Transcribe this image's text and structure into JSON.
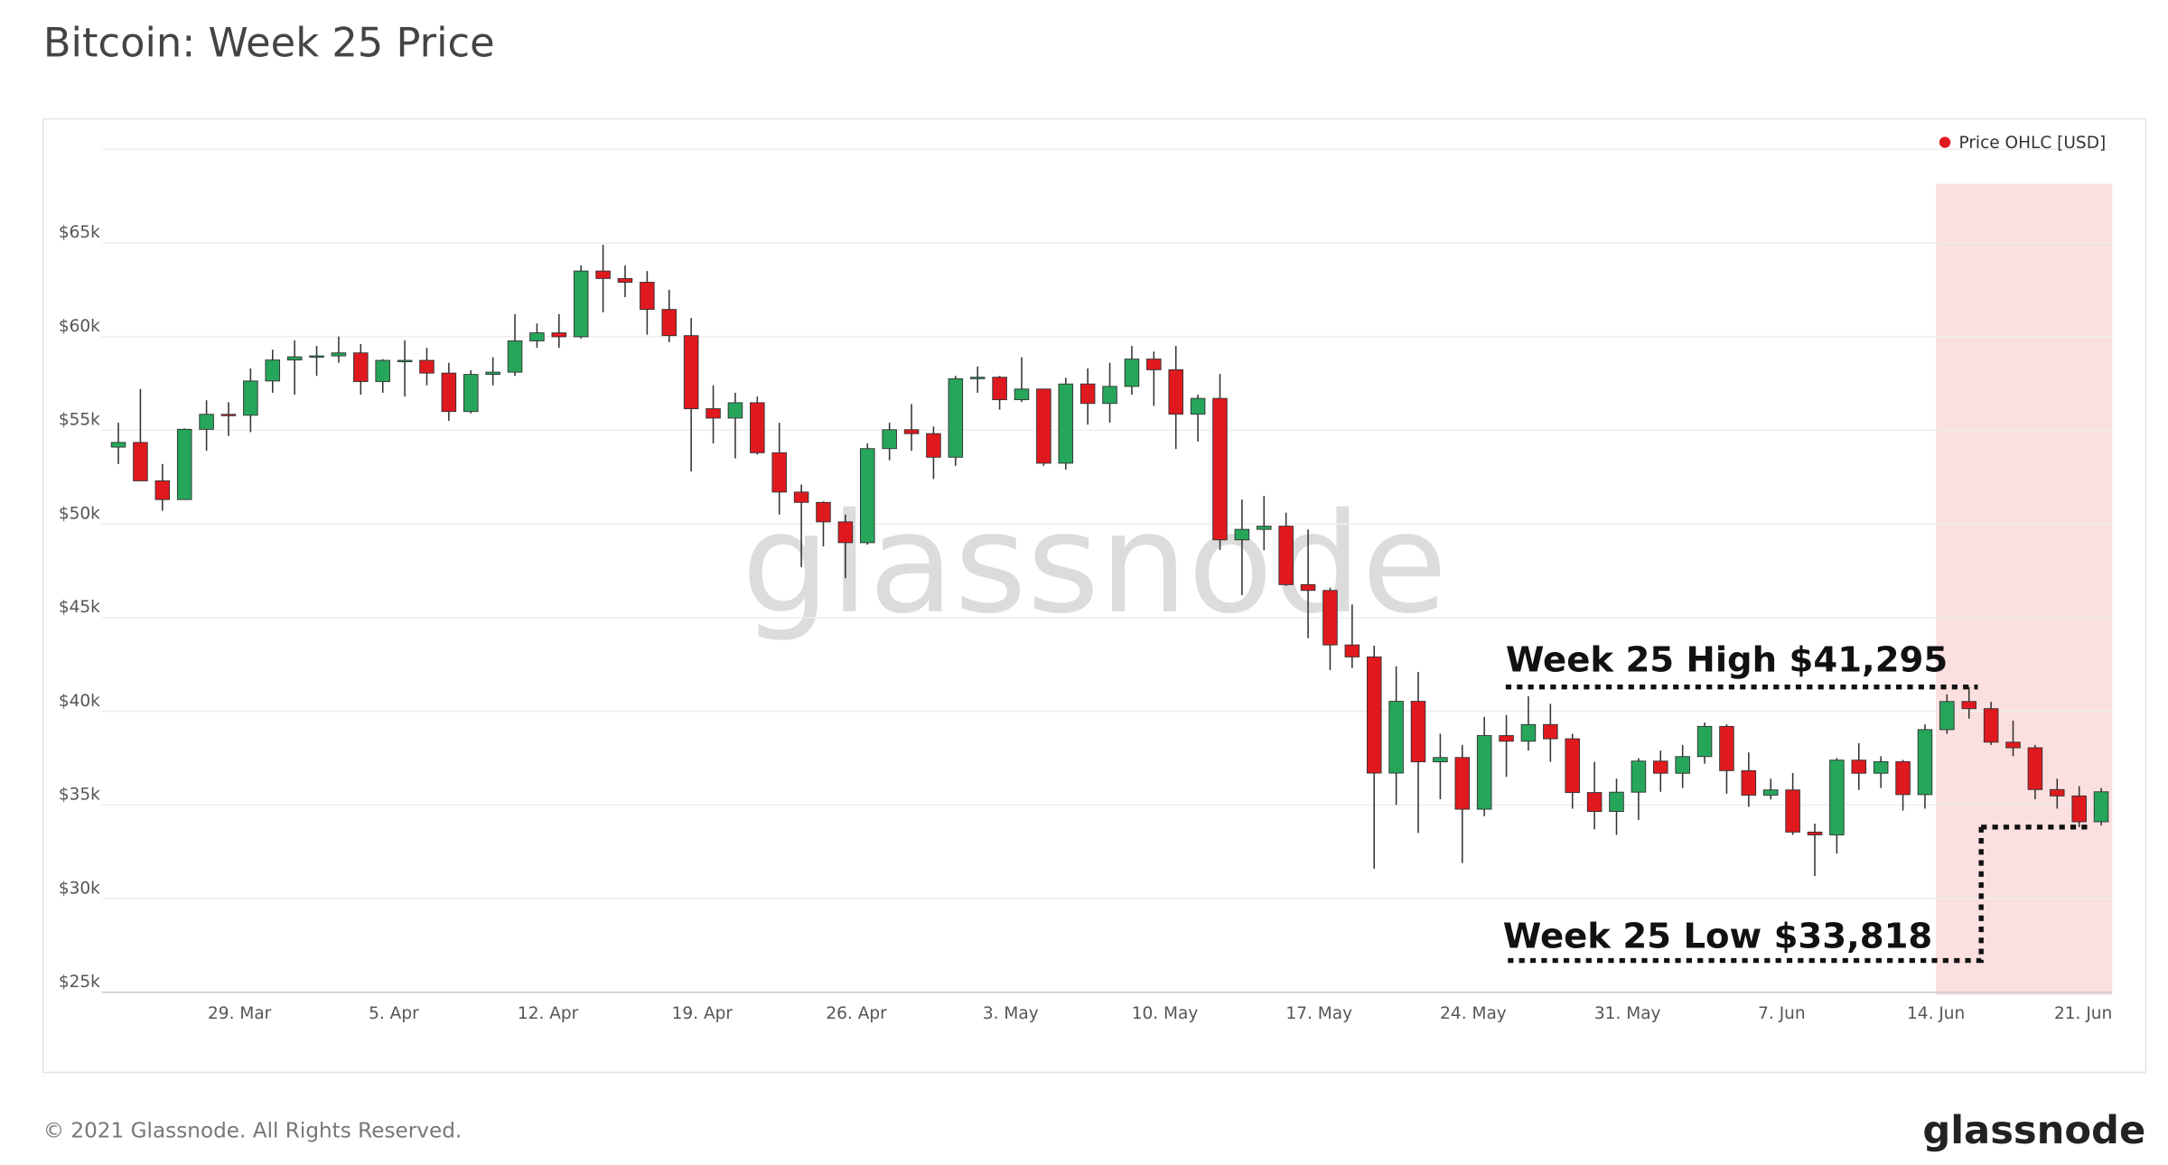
{
  "chart_data": {
    "type": "candlestick",
    "title": "Bitcoin: Week 25 Price",
    "categories": [
      null,
      null,
      null,
      null,
      null,
      null,
      "29. Mar",
      null,
      null,
      null,
      null,
      null,
      null,
      "5. Apr",
      null,
      null,
      null,
      null,
      null,
      null,
      "12. Apr",
      null,
      null,
      null,
      null,
      null,
      null,
      "19. Apr",
      null,
      null,
      null,
      null,
      null,
      null,
      "26. Apr",
      null,
      null,
      null,
      null,
      null,
      null,
      "3. May",
      null,
      null,
      null,
      null,
      null,
      null,
      "10. May",
      null,
      null,
      null,
      null,
      null,
      null,
      "17. May",
      null,
      null,
      null,
      null,
      null,
      null,
      "24. May",
      null,
      null,
      null,
      null,
      null,
      null,
      "31. May",
      null,
      null,
      null,
      null,
      null,
      null,
      "7. Jun",
      null,
      null,
      null,
      null,
      null,
      null,
      "14. Jun",
      null,
      null,
      null,
      null,
      null,
      null,
      "21. Jun"
    ],
    "series": [
      {
        "name": "Price OHLC [USD]",
        "color": "#e0191f",
        "open": [
          54100,
          54350,
          52300,
          51300,
          55050,
          55850,
          55800,
          57630,
          58750,
          58920,
          58970,
          59130,
          57600,
          58730,
          58730,
          58050,
          56000,
          57980,
          58100,
          59770,
          60200,
          59990,
          63500,
          63100,
          62900,
          61450,
          60050,
          56150,
          55650,
          56470,
          53800,
          51700,
          51150,
          50110,
          49000,
          54020,
          55030,
          54820,
          53560,
          57750,
          57830,
          56630,
          57200,
          53240,
          57470,
          56430,
          57340,
          58800,
          58230,
          55860,
          56700,
          49150,
          49710,
          49880,
          46760,
          46450,
          43540,
          42900,
          36700,
          40530,
          37300,
          37530,
          34770,
          38700,
          38400,
          39290,
          38530,
          35660,
          34650,
          35680,
          37340,
          36690,
          37580,
          39190,
          36830,
          35520,
          35800,
          33550,
          33400,
          37390,
          36690,
          37310,
          35550,
          39020,
          40520,
          40140,
          38350,
          38050,
          35820,
          35480,
          34100
        ],
        "high": [
          55400,
          57200,
          53200,
          55100,
          56600,
          56500,
          58300,
          59300,
          59800,
          59500,
          60000,
          59600,
          58800,
          59800,
          59400,
          58600,
          58200,
          58900,
          61200,
          60700,
          61200,
          63800,
          64900,
          63800,
          63500,
          62500,
          61000,
          57400,
          57000,
          56800,
          55400,
          52100,
          51200,
          50500,
          54300,
          55400,
          56400,
          55200,
          57900,
          58400,
          57900,
          58900,
          57200,
          57800,
          58300,
          58600,
          59500,
          59200,
          59500,
          56900,
          58000,
          51300,
          51500,
          50600,
          49700,
          46600,
          45700,
          43500,
          42400,
          42100,
          38800,
          38200,
          39700,
          39800,
          40800,
          40400,
          38800,
          37300,
          36400,
          37500,
          37900,
          38200,
          39400,
          39300,
          37800,
          36400,
          36700,
          34000,
          37500,
          38300,
          37600,
          37400,
          39300,
          40900,
          41295,
          40500,
          39500,
          38200,
          36400,
          36000,
          35900
        ],
        "low": [
          53200,
          52500,
          50700,
          51300,
          53900,
          54700,
          54900,
          57000,
          56900,
          57900,
          58600,
          56900,
          57000,
          56800,
          57400,
          55500,
          55900,
          57400,
          57900,
          59400,
          59400,
          59900,
          61300,
          62100,
          60100,
          59700,
          52800,
          54300,
          53500,
          53700,
          50500,
          47700,
          48800,
          47100,
          48900,
          53400,
          53900,
          52400,
          53100,
          57000,
          56100,
          56500,
          53100,
          52900,
          55300,
          55400,
          56900,
          56300,
          54000,
          54400,
          48600,
          46200,
          48600,
          46700,
          43900,
          42200,
          42300,
          31600,
          35000,
          33500,
          35300,
          31900,
          34400,
          36500,
          37900,
          37300,
          34800,
          33700,
          33400,
          34200,
          35700,
          35900,
          37200,
          35600,
          34900,
          35300,
          33400,
          31200,
          32400,
          35800,
          35900,
          34700,
          34800,
          38800,
          39600,
          38200,
          37600,
          35300,
          34800,
          33818,
          33900
        ],
        "close": [
          54350,
          52300,
          51300,
          55050,
          55850,
          55800,
          57630,
          58750,
          58920,
          58970,
          59130,
          57600,
          58730,
          58730,
          58050,
          56000,
          57980,
          58100,
          59770,
          60200,
          59990,
          63500,
          63100,
          62900,
          61450,
          60050,
          56150,
          55650,
          56470,
          53800,
          51700,
          51150,
          50110,
          49000,
          54020,
          55030,
          54820,
          53560,
          57750,
          57830,
          56630,
          57200,
          53240,
          57470,
          56430,
          57340,
          58800,
          58230,
          55860,
          56700,
          49150,
          49710,
          49880,
          46760,
          46450,
          43540,
          42900,
          36700,
          40530,
          37300,
          37530,
          34770,
          38700,
          38400,
          39290,
          38530,
          35660,
          34650,
          35680,
          37340,
          36690,
          37580,
          39190,
          36830,
          35520,
          35800,
          33550,
          33400,
          37390,
          36690,
          37310,
          35550,
          39020,
          40520,
          40140,
          38350,
          38050,
          35820,
          35480,
          34100,
          35700
        ]
      }
    ],
    "up_color": "#26a65b",
    "down_color": "#e0191f",
    "ylim": [
      25000,
      70000
    ],
    "yticks": [
      {
        "value": 25000,
        "label": "$25k"
      },
      {
        "value": 30000,
        "label": "$30k"
      },
      {
        "value": 35000,
        "label": "$35k"
      },
      {
        "value": 40000,
        "label": "$40k"
      },
      {
        "value": 45000,
        "label": "$45k"
      },
      {
        "value": 50000,
        "label": "$50k"
      },
      {
        "value": 55000,
        "label": "$55k"
      },
      {
        "value": 60000,
        "label": "$60k"
      },
      {
        "value": 65000,
        "label": "$65k"
      }
    ],
    "grid": true,
    "annotations": [
      {
        "text": "Week 25 High $41,295",
        "value": 41295
      },
      {
        "text": "Week 25 Low $33,818",
        "value": 33818
      }
    ],
    "watermark": "glassnode",
    "footer": "© 2021 Glassnode. All Rights Reserved.",
    "logo": "glassnode"
  }
}
